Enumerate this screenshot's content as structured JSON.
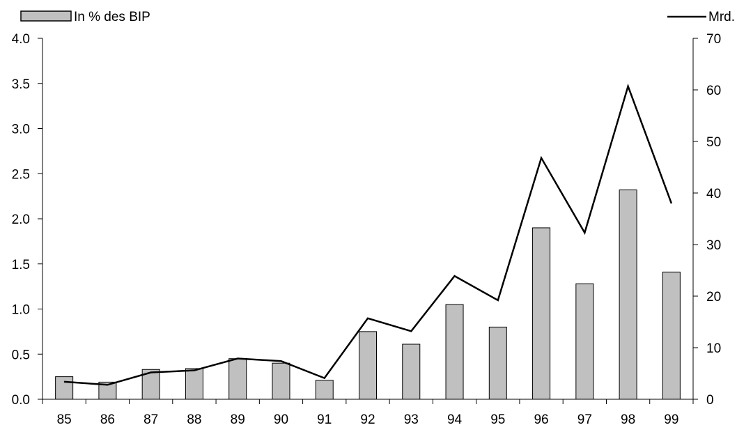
{
  "chart_data": {
    "type": "bar",
    "categories": [
      "85",
      "86",
      "87",
      "88",
      "89",
      "90",
      "91",
      "92",
      "93",
      "94",
      "95",
      "96",
      "97",
      "98",
      "99"
    ],
    "series": [
      {
        "name": "In % des BIP",
        "type": "bar",
        "axis": "left",
        "color": "#c0c0c0",
        "values": [
          0.25,
          0.19,
          0.33,
          0.34,
          0.45,
          0.4,
          0.21,
          0.75,
          0.61,
          1.05,
          0.8,
          1.9,
          1.28,
          2.32,
          1.41
        ]
      },
      {
        "name": "Mrd. S",
        "type": "line",
        "axis": "right",
        "color": "#000000",
        "values": [
          3.4,
          2.8,
          5.2,
          5.6,
          7.9,
          7.4,
          4.1,
          15.7,
          13.2,
          23.9,
          19.2,
          46.8,
          32.3,
          60.7,
          38.0
        ]
      }
    ],
    "y_left": {
      "ylim": [
        0,
        4
      ],
      "ticks": [
        "0.0",
        "0.5",
        "1.0",
        "1.5",
        "2.0",
        "2.5",
        "3.0",
        "3.5",
        "4.0"
      ]
    },
    "y_right": {
      "ylim": [
        0,
        70
      ],
      "ticks": [
        "0",
        "10",
        "20",
        "30",
        "40",
        "50",
        "60",
        "70"
      ]
    },
    "legend": [
      {
        "label": "In % des BIP",
        "kind": "bar",
        "placement": "top-left"
      },
      {
        "label": "Mrd. S",
        "kind": "line",
        "placement": "top-right"
      }
    ],
    "grid": false
  }
}
